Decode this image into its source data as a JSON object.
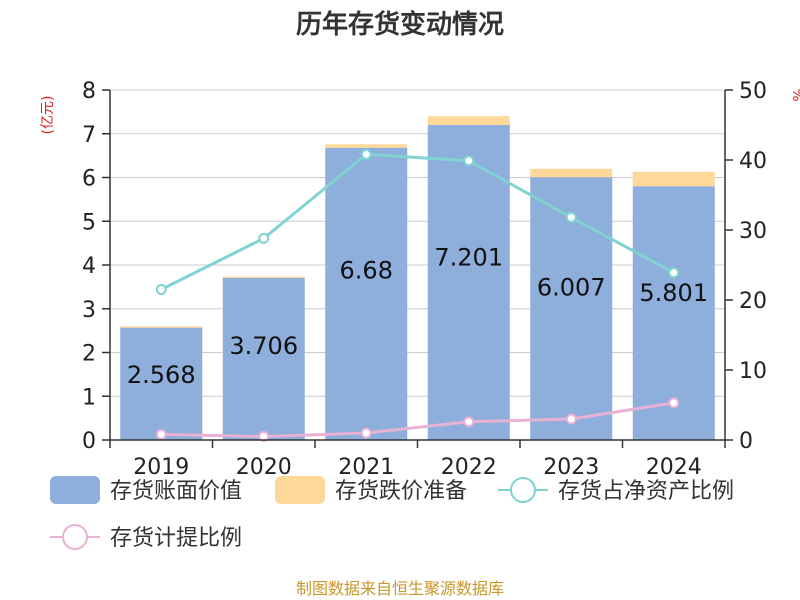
{
  "chart_data": {
    "type": "bar",
    "title": "历年存货变动情况",
    "categories": [
      "2019",
      "2020",
      "2021",
      "2022",
      "2023",
      "2024"
    ],
    "left_axis": {
      "label": "(亿元)",
      "ylim": [
        0,
        8
      ],
      "ticks": [
        0,
        1,
        2,
        3,
        4,
        5,
        6,
        7,
        8
      ]
    },
    "right_axis": {
      "label": "%",
      "ylim": [
        0,
        50
      ],
      "ticks": [
        0,
        10,
        20,
        30,
        40,
        50
      ]
    },
    "series": [
      {
        "name": "存货账面价值",
        "type": "bar",
        "axis": "left",
        "color": "#8eaedb",
        "values": [
          2.568,
          3.706,
          6.68,
          7.201,
          6.007,
          5.801
        ],
        "labels": [
          "2.568",
          "3.706",
          "6.68",
          "7.201",
          "6.007",
          "5.801"
        ]
      },
      {
        "name": "存货跌价准备",
        "type": "bar",
        "axis": "left",
        "color": "#fdd898",
        "values": [
          0.03,
          0.03,
          0.08,
          0.2,
          0.19,
          0.33
        ]
      },
      {
        "name": "存货占净资产比例",
        "type": "line",
        "axis": "right",
        "color": "#7fd3d0",
        "values": [
          21.5,
          28.8,
          40.8,
          39.9,
          31.8,
          23.9
        ]
      },
      {
        "name": "存货计提比例",
        "type": "line",
        "axis": "right",
        "color": "#e8b2d6",
        "values": [
          0.8,
          0.5,
          1.0,
          2.6,
          3.0,
          5.3
        ]
      }
    ],
    "legend_position": "bottom",
    "grid": true,
    "source": "制图数据来自恒生聚源数据库",
    "colors": {
      "title": "#333333",
      "axis_label": "#e02020",
      "source": "#c8962a",
      "grid": "#cccccc"
    }
  }
}
